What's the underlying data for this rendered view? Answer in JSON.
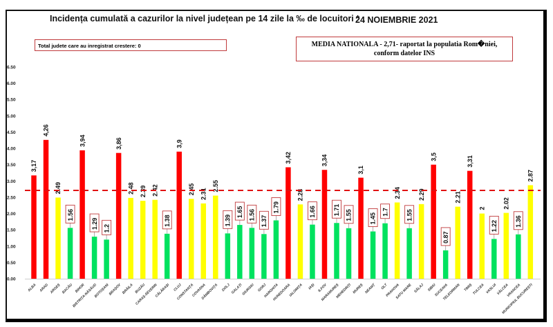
{
  "chart_data": {
    "type": "bar",
    "title": "Incidența cumulată a cazurilor la nivel județean pe 14 zile la ‰ de locuitori *",
    "date": "24 NOIEMBRIE 2021",
    "note": "Total judete care au inregistrat crestere: 0",
    "media_line1": "MEDIA NATIONALA - 2,71-  raportat la populatia Rom�niei,",
    "media_line2": "conform datelor INS",
    "reference_line": {
      "value": 2.71,
      "color": "#e01010",
      "style": "dashed"
    },
    "ylim": [
      0,
      6.5
    ],
    "yticks": [
      "0.00",
      "0.50",
      "1.00",
      "1.50",
      "2.00",
      "2.50",
      "3.00",
      "3.50",
      "4.00",
      "4.50",
      "5.00",
      "5.50",
      "6.00",
      "6.50"
    ],
    "categories": [
      "ALBA",
      "ARAD",
      "ARGEȘ",
      "BACĂU",
      "BIHOR",
      "BISTRIȚA-NĂSĂUD",
      "BOTOȘANI",
      "BRAȘOV",
      "BRĂILA",
      "BUZĂU",
      "CARAȘ-SEVERIN",
      "CĂLĂRAȘI",
      "CLUJ",
      "CONSTANȚA",
      "COVASNA",
      "DÂMBOVIȚA",
      "DOLJ",
      "GALAȚI",
      "GIURGIU",
      "GORJ",
      "HARGHITA",
      "HUNEDOARA",
      "IALOMIȚA",
      "IAȘI",
      "ILFOV",
      "MARAMUREȘ",
      "MEHEDINȚI",
      "MUREȘ",
      "NEAMȚ",
      "OLT",
      "PRAHOVA",
      "SATU MARE",
      "SĂLAJ",
      "SIBIU",
      "SUCEAVA",
      "TELEORMAN",
      "TIMIȘ",
      "TULCEA",
      "VASLUI",
      "VÂLCEA",
      "VRANCEA",
      "MUNICIPIUL BUCUREȘTI"
    ],
    "values": [
      3.17,
      4.26,
      2.49,
      1.56,
      3.94,
      1.29,
      1.2,
      3.86,
      2.48,
      2.39,
      2.42,
      1.38,
      3.9,
      2.45,
      2.31,
      2.55,
      1.39,
      1.65,
      1.56,
      1.37,
      1.79,
      3.42,
      2.28,
      1.66,
      3.34,
      1.71,
      1.55,
      3.1,
      1.45,
      1.7,
      2.34,
      1.55,
      2.29,
      3.5,
      0.87,
      2.21,
      3.31,
      2,
      1.22,
      2.02,
      1.36,
      2.87
    ],
    "data_labels": [
      "3,17",
      "4,26",
      "2.49",
      "1.56",
      "3,94",
      "1.29",
      "1.2",
      "3,86",
      "2.48",
      "2.39",
      "2.42",
      "1.38",
      "3,9",
      "2.45",
      "2.31",
      "2.55",
      "1.39",
      "1.65",
      "1.56",
      "1.37",
      "1.79",
      "3,42",
      "2.28",
      "1.66",
      "3,34",
      "1.71",
      "1.55",
      "3,1",
      "1.45",
      "1.7",
      "2.34",
      "1.55",
      "2.29",
      "3,5",
      "0.87",
      "2.21",
      "3,31",
      "2",
      "1.22",
      "2.02",
      "1.36",
      "2.87"
    ],
    "bar_colors": {
      "red": "#ff0000",
      "yellow": "#ffff00",
      "green": "#00e25f"
    },
    "color_class": [
      "red",
      "red",
      "yellow",
      "green",
      "red",
      "green",
      "green",
      "red",
      "yellow",
      "yellow",
      "yellow",
      "green",
      "red",
      "yellow",
      "yellow",
      "yellow",
      "green",
      "green",
      "green",
      "green",
      "green",
      "red",
      "yellow",
      "green",
      "red",
      "green",
      "green",
      "red",
      "green",
      "green",
      "yellow",
      "green",
      "yellow",
      "red",
      "green",
      "yellow",
      "red",
      "yellow",
      "green",
      "yellow",
      "green",
      "yellow"
    ],
    "grid": false,
    "legend": "none"
  }
}
